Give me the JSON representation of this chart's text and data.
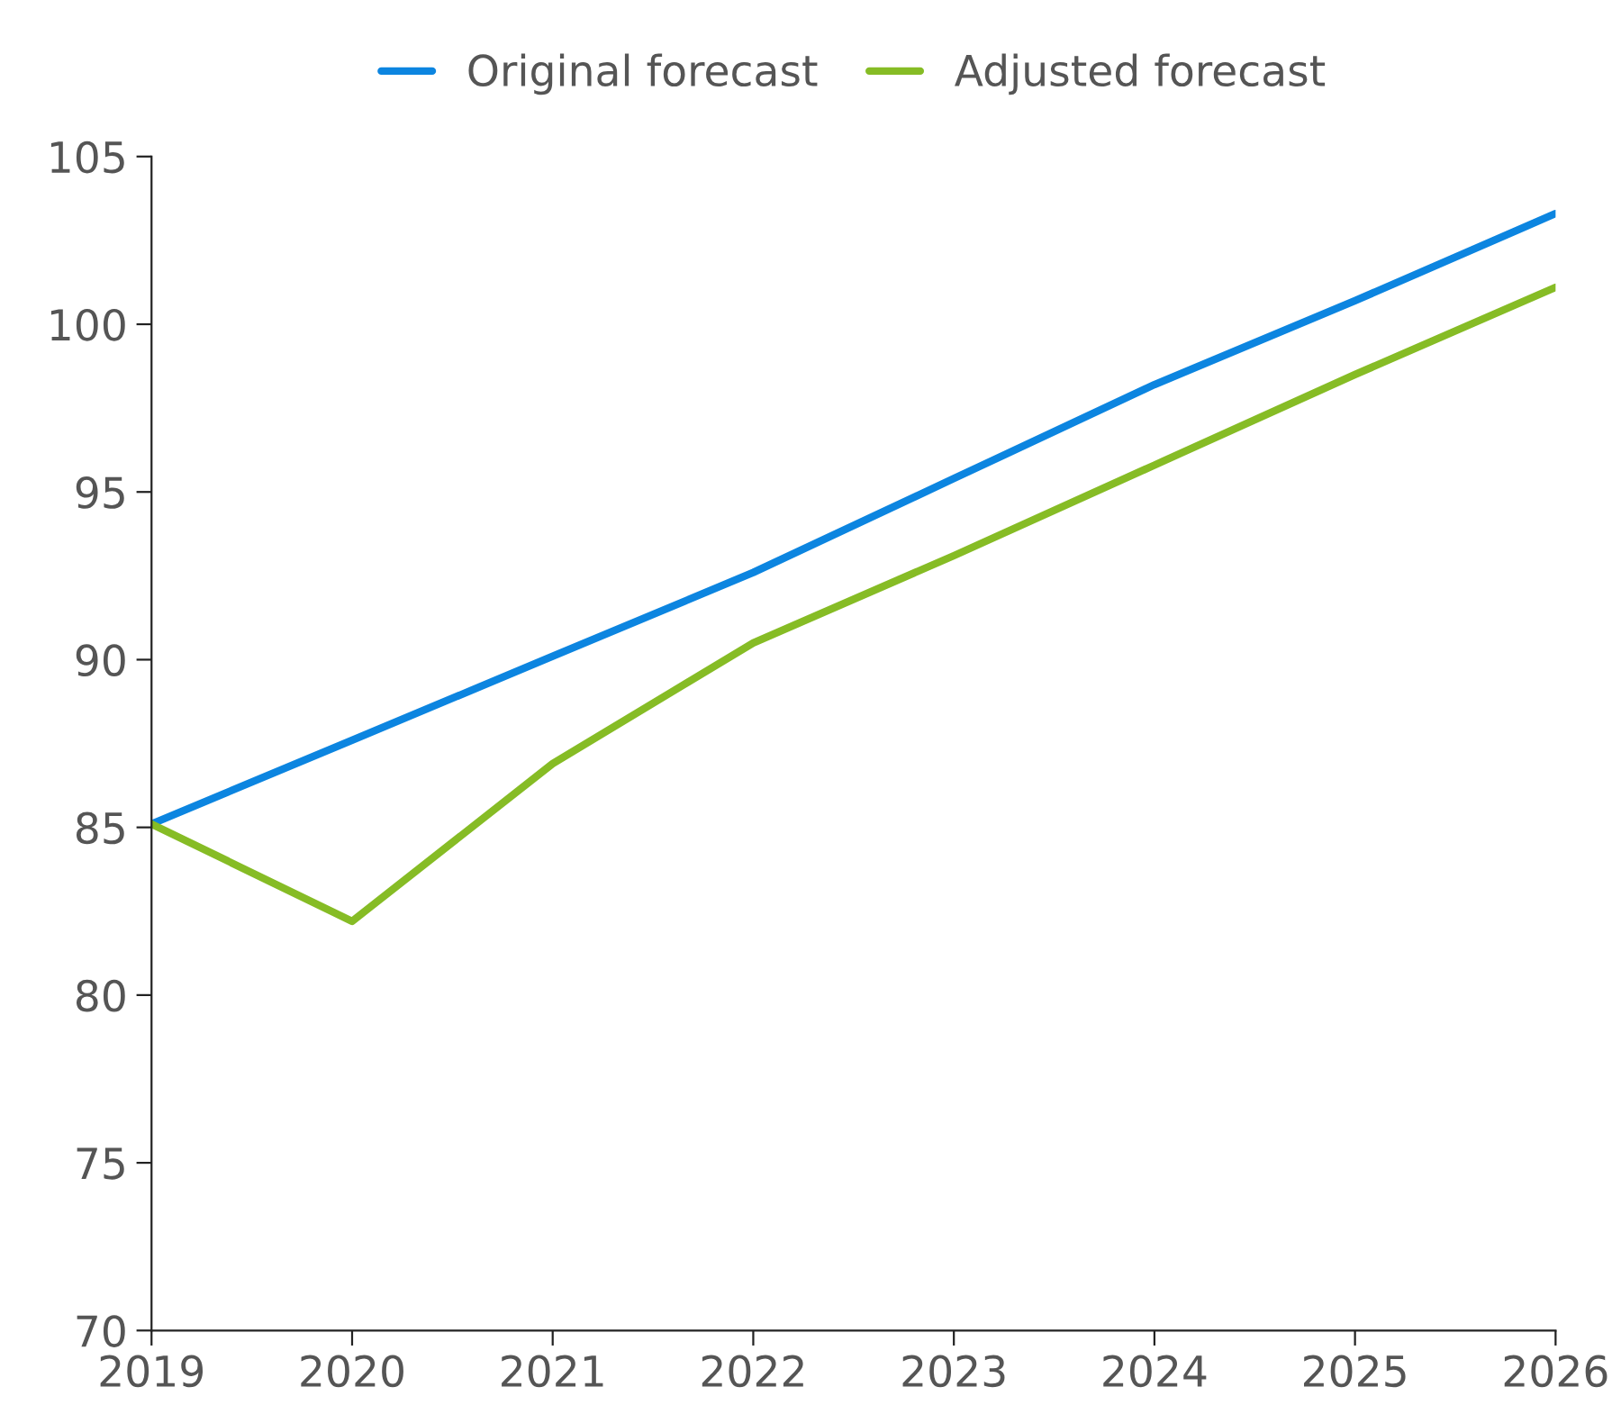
{
  "chart_data": {
    "type": "line",
    "x": [
      2019,
      2020,
      2021,
      2022,
      2023,
      2024,
      2025,
      2026
    ],
    "series": [
      {
        "name": "Original forecast",
        "color": "#0c85e0",
        "values": [
          85.1,
          87.6,
          90.1,
          92.6,
          95.4,
          98.2,
          100.7,
          103.3
        ]
      },
      {
        "name": "Adjusted forecast",
        "color": "#86bc25",
        "values": [
          85.1,
          82.2,
          86.9,
          90.5,
          93.1,
          95.8,
          98.5,
          101.1
        ]
      }
    ],
    "xlim": [
      2019,
      2026
    ],
    "xticks": [
      2019,
      2020,
      2021,
      2022,
      2023,
      2024,
      2025,
      2026
    ],
    "ylim": [
      70,
      105
    ],
    "yticks": [
      70,
      75,
      80,
      85,
      90,
      95,
      100,
      105
    ],
    "grid": false,
    "legend": "top",
    "marker": "none",
    "line_style": "solid"
  }
}
